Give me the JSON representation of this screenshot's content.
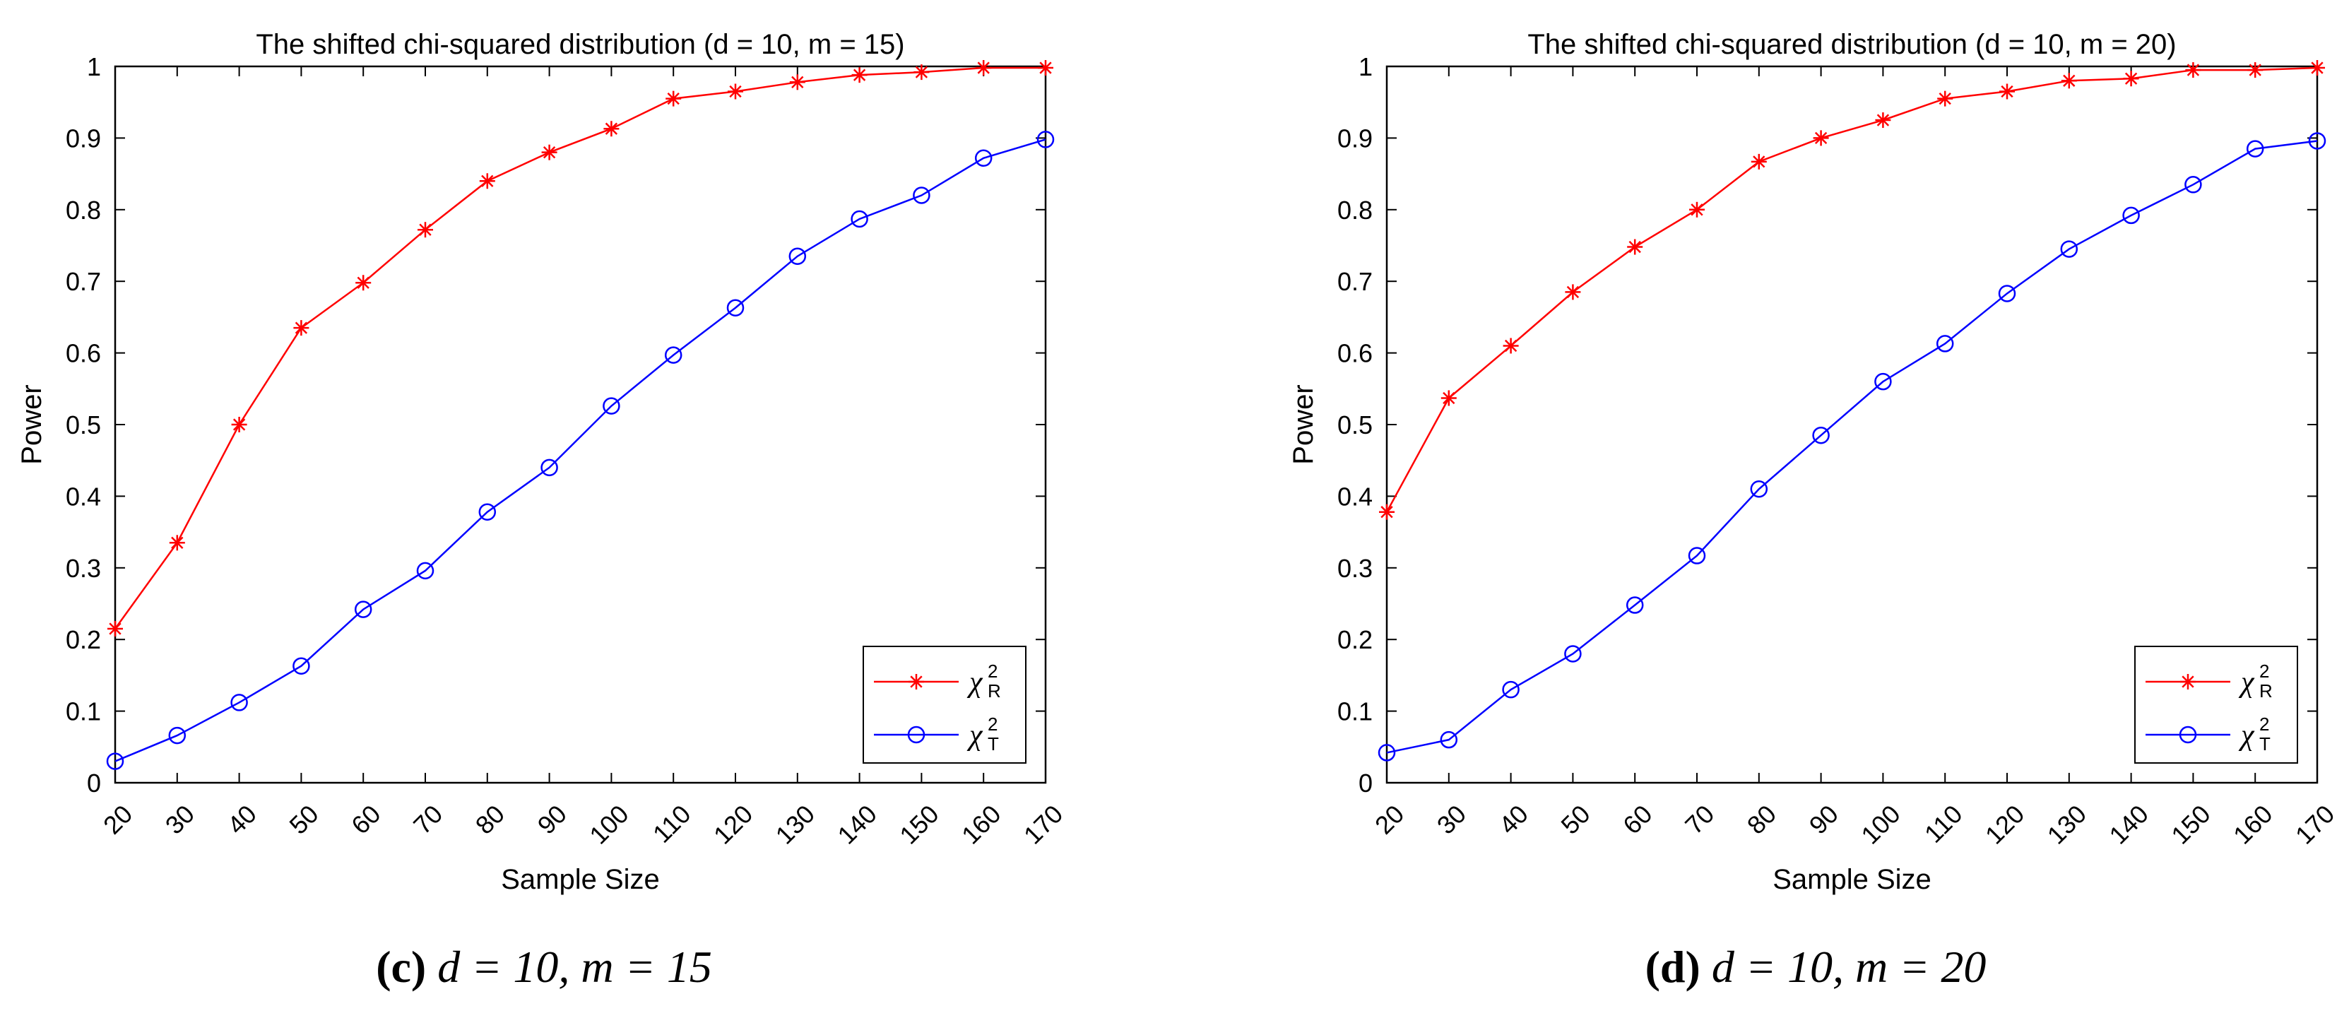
{
  "chart_data": [
    {
      "type": "line",
      "title": "The shifted chi-squared distribution (d = 10, m = 15)",
      "xlabel": "Sample Size",
      "ylabel": "Power",
      "categories": [
        20,
        30,
        40,
        50,
        60,
        70,
        80,
        90,
        100,
        110,
        120,
        130,
        140,
        150,
        160,
        170
      ],
      "xlim": [
        20,
        170
      ],
      "ylim": [
        0,
        1
      ],
      "yticks": [
        "0",
        "0.1",
        "0.2",
        "0.3",
        "0.4",
        "0.5",
        "0.6",
        "0.7",
        "0.8",
        "0.9",
        "1"
      ],
      "xticks": [
        "20",
        "30",
        "40",
        "50",
        "60",
        "70",
        "80",
        "90",
        "100",
        "110",
        "120",
        "130",
        "140",
        "150",
        "160",
        "170"
      ],
      "legend_position": "bottom-right",
      "caption": {
        "letter": "(c)",
        "formula": "d = 10, m = 15"
      },
      "series": [
        {
          "name": "χ²_R",
          "symbol": "χ",
          "sup": "2",
          "sub": "R",
          "color": "#ff0000",
          "marker": "asterisk",
          "values": [
            0.215,
            0.335,
            0.5,
            0.635,
            0.698,
            0.772,
            0.84,
            0.88,
            0.913,
            0.955,
            0.965,
            0.978,
            0.988,
            0.992,
            0.998,
            0.998
          ]
        },
        {
          "name": "χ²_T",
          "symbol": "χ",
          "sup": "2",
          "sub": "T",
          "color": "#0000ff",
          "marker": "circle",
          "values": [
            0.03,
            0.066,
            0.112,
            0.163,
            0.242,
            0.296,
            0.378,
            0.44,
            0.526,
            0.597,
            0.663,
            0.735,
            0.787,
            0.82,
            0.872,
            0.898
          ]
        }
      ]
    },
    {
      "type": "line",
      "title": "The shifted chi-squared distribution (d = 10, m = 20)",
      "xlabel": "Sample Size",
      "ylabel": "Power",
      "categories": [
        20,
        30,
        40,
        50,
        60,
        70,
        80,
        90,
        100,
        110,
        120,
        130,
        140,
        150,
        160,
        170
      ],
      "xlim": [
        20,
        170
      ],
      "ylim": [
        0,
        1
      ],
      "yticks": [
        "0",
        "0.1",
        "0.2",
        "0.3",
        "0.4",
        "0.5",
        "0.6",
        "0.7",
        "0.8",
        "0.9",
        "1"
      ],
      "xticks": [
        "20",
        "30",
        "40",
        "50",
        "60",
        "70",
        "80",
        "90",
        "100",
        "110",
        "120",
        "130",
        "140",
        "150",
        "160",
        "170"
      ],
      "legend_position": "bottom-right",
      "caption": {
        "letter": "(d)",
        "formula": "d = 10, m = 20"
      },
      "series": [
        {
          "name": "χ²_R",
          "symbol": "χ",
          "sup": "2",
          "sub": "R",
          "color": "#ff0000",
          "marker": "asterisk",
          "values": [
            0.378,
            0.537,
            0.61,
            0.685,
            0.748,
            0.8,
            0.867,
            0.9,
            0.925,
            0.955,
            0.965,
            0.98,
            0.983,
            0.995,
            0.995,
            0.998
          ]
        },
        {
          "name": "χ²_T",
          "symbol": "χ",
          "sup": "2",
          "sub": "T",
          "color": "#0000ff",
          "marker": "circle",
          "values": [
            0.042,
            0.06,
            0.13,
            0.18,
            0.248,
            0.317,
            0.41,
            0.485,
            0.56,
            0.613,
            0.683,
            0.745,
            0.792,
            0.835,
            0.885,
            0.896
          ]
        }
      ]
    }
  ]
}
